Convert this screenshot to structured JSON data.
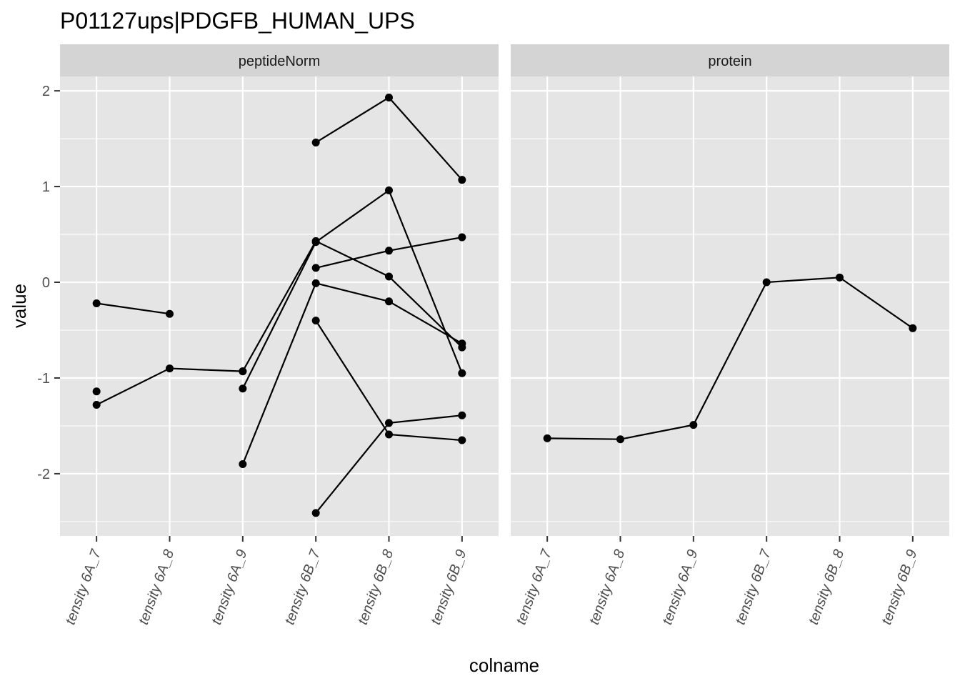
{
  "chart_data": {
    "type": "line",
    "title": "P01127ups|PDGFB_HUMAN_UPS",
    "xlabel": "colname",
    "ylabel": "value",
    "categories": [
      "tensity 6A_7",
      "tensity 6A_8",
      "tensity 6A_9",
      "tensity 6B_7",
      "tensity 6B_8",
      "tensity 6B_9"
    ],
    "ylim": [
      -2.65,
      2.15
    ],
    "yticks": [
      -2,
      -1,
      0,
      1,
      2
    ],
    "yticklabels": [
      "-2",
      "-1",
      "0",
      "1",
      "2"
    ],
    "grid": true,
    "legend": "none",
    "colors": {
      "panel_bg": "#e5e5e5",
      "strip_bg": "#d4d4d4",
      "grid": "#ffffff",
      "line": "#000000",
      "tick": "#333333"
    },
    "panels": [
      {
        "label": "peptideNorm",
        "series": [
          {
            "values": [
              -0.22,
              -0.33,
              null,
              null,
              null,
              null
            ]
          },
          {
            "values": [
              -1.14,
              null,
              null,
              null,
              null,
              null
            ]
          },
          {
            "values": [
              -1.28,
              -0.9,
              -0.93,
              null,
              null,
              null
            ]
          },
          {
            "values": [
              null,
              null,
              -1.11,
              0.42,
              0.96,
              -0.95
            ]
          },
          {
            "values": [
              null,
              null,
              -0.93,
              0.43,
              0.06,
              -0.68
            ]
          },
          {
            "values": [
              null,
              null,
              -1.9,
              -0.01,
              -0.2,
              -0.64
            ]
          },
          {
            "values": [
              null,
              null,
              null,
              1.46,
              1.93,
              1.07
            ]
          },
          {
            "values": [
              null,
              null,
              null,
              0.15,
              0.33,
              0.47
            ]
          },
          {
            "values": [
              null,
              null,
              null,
              -0.4,
              -1.59,
              -1.65
            ]
          },
          {
            "values": [
              null,
              null,
              null,
              -2.41,
              -1.47,
              -1.39
            ]
          }
        ]
      },
      {
        "label": "protein",
        "series": [
          {
            "values": [
              -1.63,
              -1.64,
              -1.49,
              0.0,
              0.05,
              -0.48
            ]
          }
        ]
      }
    ]
  }
}
